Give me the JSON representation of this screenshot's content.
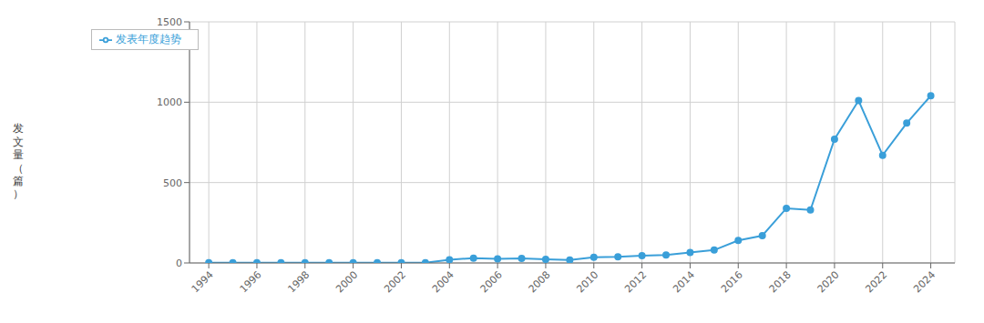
{
  "chart_data": {
    "type": "line",
    "x": [
      1994,
      1995,
      1996,
      1997,
      1998,
      1999,
      2000,
      2001,
      2002,
      2003,
      2004,
      2005,
      2006,
      2007,
      2008,
      2009,
      2010,
      2011,
      2012,
      2013,
      2014,
      2015,
      2016,
      2017,
      2018,
      2019,
      2020,
      2021,
      2022,
      2023,
      2024
    ],
    "series": [
      {
        "name": "发表年度趋势",
        "color": "#3a9fd9",
        "marker": "circle",
        "values": [
          2,
          1,
          1,
          1,
          1,
          1,
          1,
          1,
          1,
          1,
          20,
          30,
          25,
          28,
          22,
          18,
          35,
          38,
          45,
          50,
          65,
          80,
          140,
          170,
          340,
          330,
          770,
          1010,
          670,
          870,
          1040
        ]
      }
    ],
    "ylabel": "发文量（篇）",
    "xlim": [
      1993.2,
      2025
    ],
    "xticks": [
      1994,
      1996,
      1998,
      2000,
      2002,
      2004,
      2006,
      2008,
      2010,
      2012,
      2014,
      2016,
      2018,
      2020,
      2022,
      2024
    ],
    "ylim": [
      0,
      1500
    ],
    "yticks": [
      0,
      500,
      1000,
      1500
    ],
    "grid": true,
    "legend": "upper left"
  }
}
